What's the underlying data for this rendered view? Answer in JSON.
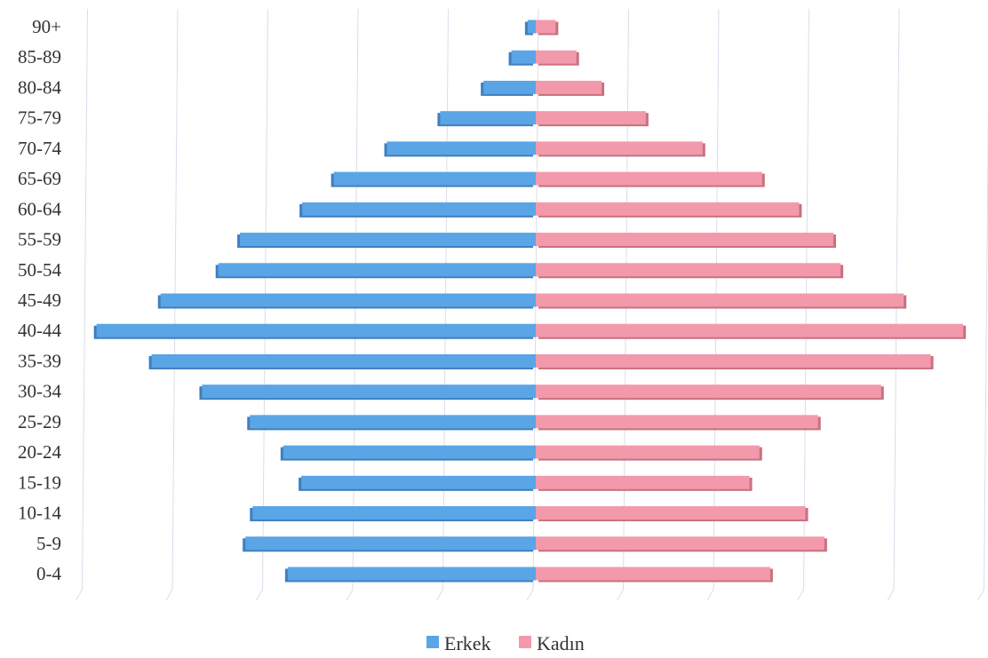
{
  "chart_data": {
    "type": "bar",
    "orientation": "horizontal",
    "layout": "population-pyramid",
    "categories": [
      "0-4",
      "5-9",
      "10-14",
      "15-19",
      "20-24",
      "25-29",
      "30-34",
      "35-39",
      "40-44",
      "45-49",
      "50-54",
      "55-59",
      "60-64",
      "65-69",
      "70-74",
      "75-79",
      "80-84",
      "85-89",
      "90+"
    ],
    "series": [
      {
        "name": "Erkek",
        "color": "#5aa5e6",
        "side": "left",
        "values": [
          2.75,
          3.22,
          3.14,
          2.6,
          2.8,
          3.17,
          3.7,
          4.26,
          4.87,
          4.16,
          3.52,
          3.28,
          2.59,
          2.24,
          1.65,
          1.06,
          0.58,
          0.27,
          0.09
        ]
      },
      {
        "name": "Kadın",
        "color": "#f29aac",
        "side": "right",
        "values": [
          2.6,
          3.2,
          2.99,
          2.37,
          2.48,
          3.13,
          3.83,
          4.38,
          4.74,
          4.08,
          3.38,
          3.3,
          2.92,
          2.51,
          1.85,
          1.22,
          0.73,
          0.45,
          0.22
        ]
      }
    ],
    "xlim": [
      -5,
      5
    ],
    "grid": true,
    "legend_position": "bottom-center",
    "legend": [
      "Erkek",
      "Kadın"
    ]
  }
}
